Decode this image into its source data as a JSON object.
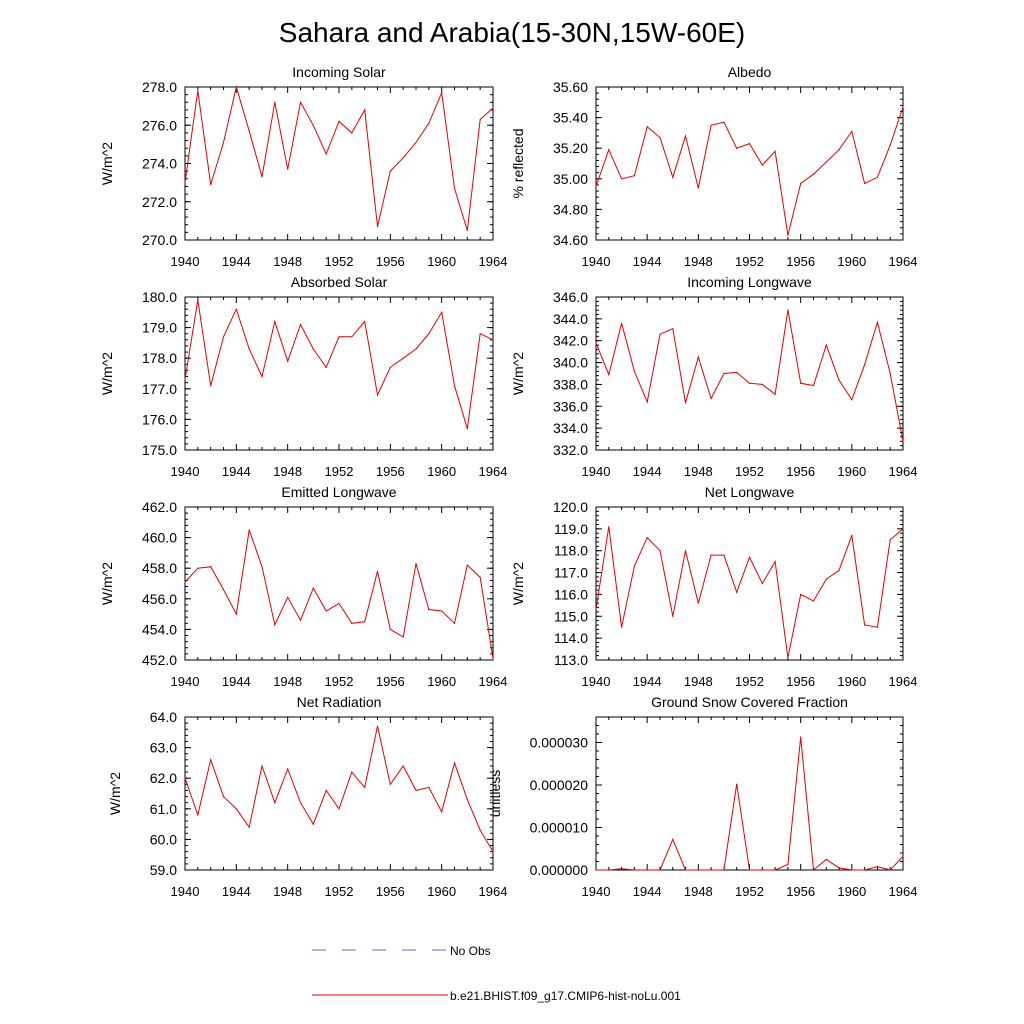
{
  "figure": {
    "title": "Sahara and Arabia(15-30N,15W-60E)",
    "legend": [
      {
        "label": "No Obs",
        "color": "#6a6ad8",
        "style": "dashed"
      },
      {
        "label": "b.e21.BHIST.f09_g17.CMIP6-hist-noLu.001",
        "color": "#e00000",
        "style": "solid"
      }
    ]
  },
  "chart_data": [
    {
      "type": "line",
      "title": "Incoming Solar",
      "ylabel": "W/m^2",
      "xlim": [
        1940,
        1964
      ],
      "ylim": [
        270.0,
        278.0
      ],
      "xticks": [
        "1940",
        "1944",
        "1948",
        "1952",
        "1956",
        "1960",
        "1964"
      ],
      "yticks": [
        "270.0",
        "272.0",
        "274.0",
        "276.0",
        "278.0"
      ],
      "grid": false,
      "x": [
        1940,
        1941,
        1942,
        1943,
        1944,
        1945,
        1946,
        1947,
        1948,
        1949,
        1950,
        1951,
        1952,
        1953,
        1954,
        1955,
        1956,
        1957,
        1958,
        1959,
        1960,
        1961,
        1962,
        1963,
        1964
      ],
      "series": [
        {
          "color": "#e00000",
          "values": [
            273.0,
            277.8,
            272.9,
            275.1,
            278.0,
            275.7,
            273.3,
            277.2,
            273.7,
            277.2,
            276.0,
            274.5,
            276.2,
            275.6,
            276.8,
            270.7,
            273.6,
            274.3,
            275.1,
            276.1,
            277.7,
            272.7,
            270.5,
            276.3,
            276.9
          ]
        }
      ]
    },
    {
      "type": "line",
      "title": "Albedo",
      "ylabel": "% reflected",
      "xlim": [
        1940,
        1964
      ],
      "ylim": [
        34.6,
        35.6
      ],
      "xticks": [
        "1940",
        "1944",
        "1948",
        "1952",
        "1956",
        "1960",
        "1964"
      ],
      "yticks": [
        "34.60",
        "34.80",
        "35.00",
        "35.20",
        "35.40",
        "35.60"
      ],
      "grid": false,
      "x": [
        1940,
        1941,
        1942,
        1943,
        1944,
        1945,
        1946,
        1947,
        1948,
        1949,
        1950,
        1951,
        1952,
        1953,
        1954,
        1955,
        1956,
        1957,
        1958,
        1959,
        1960,
        1961,
        1962,
        1963,
        1964
      ],
      "series": [
        {
          "color": "#e00000",
          "values": [
            34.95,
            35.19,
            35.0,
            35.02,
            35.34,
            35.27,
            35.01,
            35.28,
            34.94,
            35.35,
            35.37,
            35.2,
            35.23,
            35.09,
            35.18,
            34.63,
            34.97,
            35.03,
            35.11,
            35.19,
            35.31,
            34.97,
            35.01,
            35.22,
            35.47
          ]
        }
      ]
    },
    {
      "type": "line",
      "title": "Absorbed Solar",
      "ylabel": "W/m^2",
      "xlim": [
        1940,
        1964
      ],
      "ylim": [
        175.0,
        180.0
      ],
      "xticks": [
        "1940",
        "1944",
        "1948",
        "1952",
        "1956",
        "1960",
        "1964"
      ],
      "yticks": [
        "175.0",
        "176.0",
        "177.0",
        "178.0",
        "179.0",
        "180.0"
      ],
      "grid": false,
      "x": [
        1940,
        1941,
        1942,
        1943,
        1944,
        1945,
        1946,
        1947,
        1948,
        1949,
        1950,
        1951,
        1952,
        1953,
        1954,
        1955,
        1956,
        1957,
        1958,
        1959,
        1960,
        1961,
        1962,
        1963,
        1964
      ],
      "series": [
        {
          "color": "#e00000",
          "values": [
            177.3,
            179.9,
            177.1,
            178.7,
            179.6,
            178.3,
            177.4,
            179.2,
            177.9,
            179.1,
            178.3,
            177.7,
            178.7,
            178.7,
            179.2,
            176.8,
            177.7,
            178.0,
            178.3,
            178.8,
            179.5,
            177.1,
            175.7,
            178.8,
            178.6
          ]
        }
      ]
    },
    {
      "type": "line",
      "title": "Incoming Longwave",
      "ylabel": "W/m^2",
      "xlim": [
        1940,
        1964
      ],
      "ylim": [
        332.0,
        346.0
      ],
      "xticks": [
        "1940",
        "1944",
        "1948",
        "1952",
        "1956",
        "1960",
        "1964"
      ],
      "yticks": [
        "332.0",
        "334.0",
        "336.0",
        "338.0",
        "340.0",
        "342.0",
        "344.0",
        "346.0"
      ],
      "grid": false,
      "x": [
        1940,
        1941,
        1942,
        1943,
        1944,
        1945,
        1946,
        1947,
        1948,
        1949,
        1950,
        1951,
        1952,
        1953,
        1954,
        1955,
        1956,
        1957,
        1958,
        1959,
        1960,
        1961,
        1962,
        1963,
        1964
      ],
      "series": [
        {
          "color": "#e00000",
          "values": [
            341.8,
            338.9,
            343.6,
            339.2,
            336.4,
            342.6,
            343.1,
            336.3,
            340.5,
            336.7,
            339.0,
            339.1,
            338.1,
            338.0,
            337.1,
            344.8,
            338.1,
            337.9,
            341.6,
            338.4,
            336.6,
            339.8,
            343.7,
            339.0,
            332.8
          ]
        }
      ]
    },
    {
      "type": "line",
      "title": "Emitted Longwave",
      "ylabel": "W/m^2",
      "xlim": [
        1940,
        1964
      ],
      "ylim": [
        452.0,
        462.0
      ],
      "xticks": [
        "1940",
        "1944",
        "1948",
        "1952",
        "1956",
        "1960",
        "1964"
      ],
      "yticks": [
        "452.0",
        "454.0",
        "456.0",
        "458.0",
        "460.0",
        "462.0"
      ],
      "grid": false,
      "x": [
        1940,
        1941,
        1942,
        1943,
        1944,
        1945,
        1946,
        1947,
        1948,
        1949,
        1950,
        1951,
        1952,
        1953,
        1954,
        1955,
        1956,
        1957,
        1958,
        1959,
        1960,
        1961,
        1962,
        1963,
        1964
      ],
      "series": [
        {
          "color": "#e00000",
          "values": [
            457.1,
            458.0,
            458.1,
            456.6,
            455.0,
            460.5,
            458.1,
            454.3,
            456.1,
            454.6,
            456.7,
            455.2,
            455.7,
            454.4,
            454.5,
            457.8,
            454.0,
            453.5,
            458.3,
            455.3,
            455.2,
            454.4,
            458.2,
            457.4,
            452.1
          ]
        }
      ]
    },
    {
      "type": "line",
      "title": "Net Longwave",
      "ylabel": "W/m^2",
      "xlim": [
        1940,
        1964
      ],
      "ylim": [
        113.0,
        120.0
      ],
      "xticks": [
        "1940",
        "1944",
        "1948",
        "1952",
        "1956",
        "1960",
        "1964"
      ],
      "yticks": [
        "113.0",
        "114.0",
        "115.0",
        "116.0",
        "117.0",
        "118.0",
        "119.0",
        "120.0"
      ],
      "grid": false,
      "x": [
        1940,
        1941,
        1942,
        1943,
        1944,
        1945,
        1946,
        1947,
        1948,
        1949,
        1950,
        1951,
        1952,
        1953,
        1954,
        1955,
        1956,
        1957,
        1958,
        1959,
        1960,
        1961,
        1962,
        1963,
        1964
      ],
      "series": [
        {
          "color": "#e00000",
          "values": [
            115.3,
            119.1,
            114.5,
            117.3,
            118.6,
            118.0,
            115.0,
            118.0,
            115.6,
            117.8,
            117.8,
            116.1,
            117.7,
            116.5,
            117.5,
            113.1,
            116.0,
            115.7,
            116.7,
            117.1,
            118.7,
            114.6,
            114.5,
            118.5,
            119.0
          ]
        }
      ]
    },
    {
      "type": "line",
      "title": "Net Radiation",
      "ylabel": "W/m^2",
      "xlim": [
        1940,
        1964
      ],
      "ylim": [
        59.0,
        64.0
      ],
      "xticks": [
        "1940",
        "1944",
        "1948",
        "1952",
        "1956",
        "1960",
        "1964"
      ],
      "yticks": [
        "59.0",
        "60.0",
        "61.0",
        "62.0",
        "63.0",
        "64.0"
      ],
      "grid": false,
      "x": [
        1940,
        1941,
        1942,
        1943,
        1944,
        1945,
        1946,
        1947,
        1948,
        1949,
        1950,
        1951,
        1952,
        1953,
        1954,
        1955,
        1956,
        1957,
        1958,
        1959,
        1960,
        1961,
        1962,
        1963,
        1964
      ],
      "series": [
        {
          "color": "#e00000",
          "values": [
            62.0,
            60.8,
            62.6,
            61.4,
            61.0,
            60.4,
            62.4,
            61.2,
            62.3,
            61.2,
            60.5,
            61.6,
            61.0,
            62.2,
            61.7,
            63.7,
            61.8,
            62.4,
            61.6,
            61.7,
            60.9,
            62.5,
            61.3,
            60.3,
            59.6
          ]
        }
      ]
    },
    {
      "type": "line",
      "title": "Ground Snow Covered Fraction",
      "ylabel": "unitless",
      "xlim": [
        1940,
        1964
      ],
      "ylim": [
        0.0,
        3.6e-05
      ],
      "xticks": [
        "1940",
        "1944",
        "1948",
        "1952",
        "1956",
        "1960",
        "1964"
      ],
      "yticks": [
        "0.000000",
        "0.000010",
        "0.000020",
        "0.000030"
      ],
      "ytick_values": [
        0.0,
        1e-05,
        2e-05,
        3e-05
      ],
      "grid": false,
      "x": [
        1940,
        1941,
        1942,
        1943,
        1944,
        1945,
        1946,
        1947,
        1948,
        1949,
        1950,
        1951,
        1952,
        1953,
        1954,
        1955,
        1956,
        1957,
        1958,
        1959,
        1960,
        1961,
        1962,
        1963,
        1964
      ],
      "series": [
        {
          "color": "#e00000",
          "values": [
            0.0,
            0.0,
            3e-07,
            0.0,
            0.0,
            0.0,
            7.2e-06,
            0.0,
            0.0,
            0.0,
            0.0,
            2.02e-05,
            0.0,
            0.0,
            0.0,
            1.3e-06,
            3.13e-05,
            0.0,
            2.5e-06,
            5e-07,
            0.0,
            0.0,
            8e-07,
            0.0,
            3.2e-06
          ]
        }
      ]
    }
  ]
}
